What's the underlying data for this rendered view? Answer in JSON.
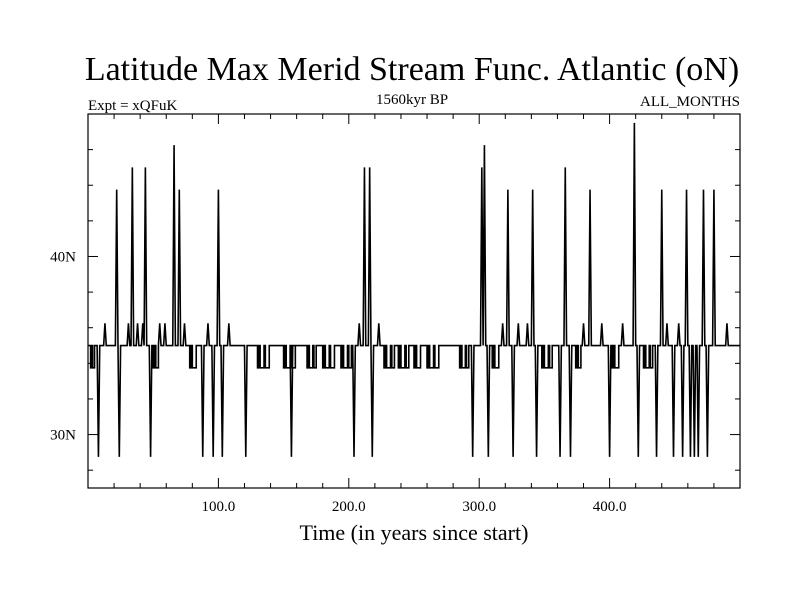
{
  "chart_data": {
    "type": "line",
    "title": "Latitude Max Merid Stream Func. Atlantic (oN)",
    "subtitle_left": "Expt = xQFuK",
    "subtitle_center": "1560kyr BP",
    "subtitle_right": "ALL_MONTHS",
    "xlabel": "Time (in years since start)",
    "ylabel": "",
    "xlim": [
      0,
      500
    ],
    "ylim": [
      27,
      48
    ],
    "x_ticks": [
      {
        "value": 100,
        "label": "100.0"
      },
      {
        "value": 200,
        "label": "200.0"
      },
      {
        "value": 300,
        "label": "300.0"
      },
      {
        "value": 400,
        "label": "400.0"
      }
    ],
    "y_ticks": [
      {
        "value": 30,
        "label": "30N"
      },
      {
        "value": 40,
        "label": "40N"
      }
    ],
    "baseline": 35,
    "step_values": [
      33.75,
      36.25
    ],
    "spikes": [
      {
        "x": 8,
        "y": 28.75
      },
      {
        "x": 13,
        "y": 36.25
      },
      {
        "x": 22,
        "y": 43.75
      },
      {
        "x": 24,
        "y": 28.75
      },
      {
        "x": 31,
        "y": 36.25
      },
      {
        "x": 34,
        "y": 45
      },
      {
        "x": 38,
        "y": 36.25
      },
      {
        "x": 42,
        "y": 36.25
      },
      {
        "x": 44,
        "y": 45
      },
      {
        "x": 48,
        "y": 28.75
      },
      {
        "x": 55,
        "y": 36.25
      },
      {
        "x": 59,
        "y": 36.25
      },
      {
        "x": 66,
        "y": 46.25
      },
      {
        "x": 70,
        "y": 43.75
      },
      {
        "x": 74,
        "y": 36.25
      },
      {
        "x": 88,
        "y": 28.75
      },
      {
        "x": 92,
        "y": 36.25
      },
      {
        "x": 96,
        "y": 28.75
      },
      {
        "x": 100,
        "y": 43.75
      },
      {
        "x": 103,
        "y": 28.75
      },
      {
        "x": 108,
        "y": 36.25
      },
      {
        "x": 121,
        "y": 28.75
      },
      {
        "x": 156,
        "y": 28.75
      },
      {
        "x": 204,
        "y": 28.75
      },
      {
        "x": 208,
        "y": 36.25
      },
      {
        "x": 212,
        "y": 45
      },
      {
        "x": 216,
        "y": 45
      },
      {
        "x": 218,
        "y": 28.75
      },
      {
        "x": 223,
        "y": 36.25
      },
      {
        "x": 295,
        "y": 28.75
      },
      {
        "x": 302,
        "y": 45
      },
      {
        "x": 304,
        "y": 46.25
      },
      {
        "x": 307,
        "y": 28.75
      },
      {
        "x": 318,
        "y": 36.25
      },
      {
        "x": 322,
        "y": 43.75
      },
      {
        "x": 326,
        "y": 28.75
      },
      {
        "x": 330,
        "y": 36.25
      },
      {
        "x": 337,
        "y": 36.25
      },
      {
        "x": 341,
        "y": 43.75
      },
      {
        "x": 344,
        "y": 28.75
      },
      {
        "x": 362,
        "y": 28.75
      },
      {
        "x": 366,
        "y": 45
      },
      {
        "x": 370,
        "y": 28.75
      },
      {
        "x": 380,
        "y": 36.25
      },
      {
        "x": 385,
        "y": 43.75
      },
      {
        "x": 394,
        "y": 36.25
      },
      {
        "x": 400,
        "y": 28.75
      },
      {
        "x": 410,
        "y": 36.25
      },
      {
        "x": 419,
        "y": 47.5
      },
      {
        "x": 422,
        "y": 28.75
      },
      {
        "x": 436,
        "y": 28.75
      },
      {
        "x": 440,
        "y": 43.75
      },
      {
        "x": 444,
        "y": 36.25
      },
      {
        "x": 449,
        "y": 28.75
      },
      {
        "x": 453,
        "y": 36.25
      },
      {
        "x": 456,
        "y": 28.75
      },
      {
        "x": 459,
        "y": 43.75
      },
      {
        "x": 462,
        "y": 28.75
      },
      {
        "x": 465,
        "y": 28.75
      },
      {
        "x": 468,
        "y": 28.75
      },
      {
        "x": 472,
        "y": 43.75
      },
      {
        "x": 475,
        "y": 28.75
      },
      {
        "x": 480,
        "y": 43.75
      },
      {
        "x": 490,
        "y": 36.25
      }
    ],
    "dips": [
      {
        "x1": 2,
        "x2": 5
      },
      {
        "x1": 50,
        "x2": 54
      },
      {
        "x1": 78,
        "x2": 84
      },
      {
        "x1": 130,
        "x2": 140
      },
      {
        "x1": 150,
        "x2": 160
      },
      {
        "x1": 168,
        "x2": 175
      },
      {
        "x1": 180,
        "x2": 190
      },
      {
        "x1": 194,
        "x2": 202
      },
      {
        "x1": 227,
        "x2": 235
      },
      {
        "x1": 238,
        "x2": 246
      },
      {
        "x1": 250,
        "x2": 256
      },
      {
        "x1": 260,
        "x2": 270
      },
      {
        "x1": 285,
        "x2": 292
      },
      {
        "x1": 310,
        "x2": 316
      },
      {
        "x1": 348,
        "x2": 356
      },
      {
        "x1": 374,
        "x2": 378
      },
      {
        "x1": 402,
        "x2": 408
      },
      {
        "x1": 426,
        "x2": 433
      }
    ],
    "grid": false,
    "line_color": "#000000"
  }
}
